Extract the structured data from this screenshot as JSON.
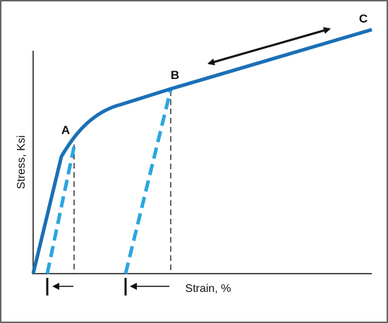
{
  "axes": {
    "y_label": "Stress, Ksi",
    "x_label": "Strain, %"
  },
  "points": [
    {
      "label": "A"
    },
    {
      "label": "B"
    },
    {
      "label": "C"
    }
  ]
}
